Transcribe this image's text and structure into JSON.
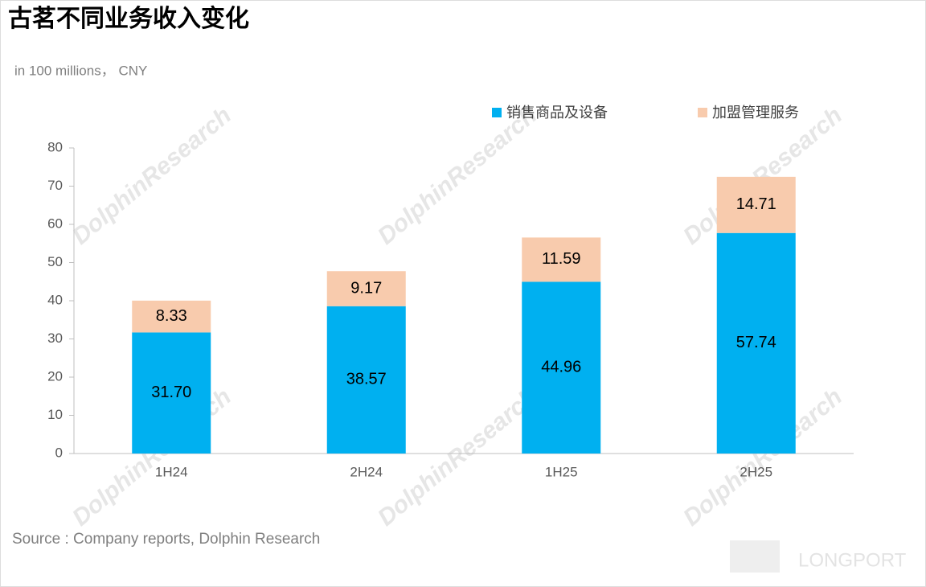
{
  "chart_data": {
    "type": "stacked_bar",
    "title": "古茗不同业务收入变化",
    "subtitle": "in 100 millions， CNY",
    "categories": [
      "1H24",
      "2H24",
      "1H25",
      "2H25"
    ],
    "series": [
      {
        "name": "销售商品及设备",
        "color": "#00b0f0",
        "values": [
          31.7,
          38.57,
          44.96,
          57.74
        ],
        "value_labels": [
          "31.70",
          "38.57",
          "44.96",
          "57.74"
        ]
      },
      {
        "name": "加盟管理服务",
        "color": "#f8cbad",
        "values": [
          8.33,
          9.17,
          11.59,
          14.71
        ]
      }
    ],
    "ylim": [
      0,
      80
    ],
    "yticks": [
      0,
      10,
      20,
      30,
      40,
      50,
      60,
      70,
      80
    ],
    "source": "Source : Company reports, Dolphin Research",
    "watermark": "DolphinResearch",
    "logo": "LONGPORT"
  }
}
